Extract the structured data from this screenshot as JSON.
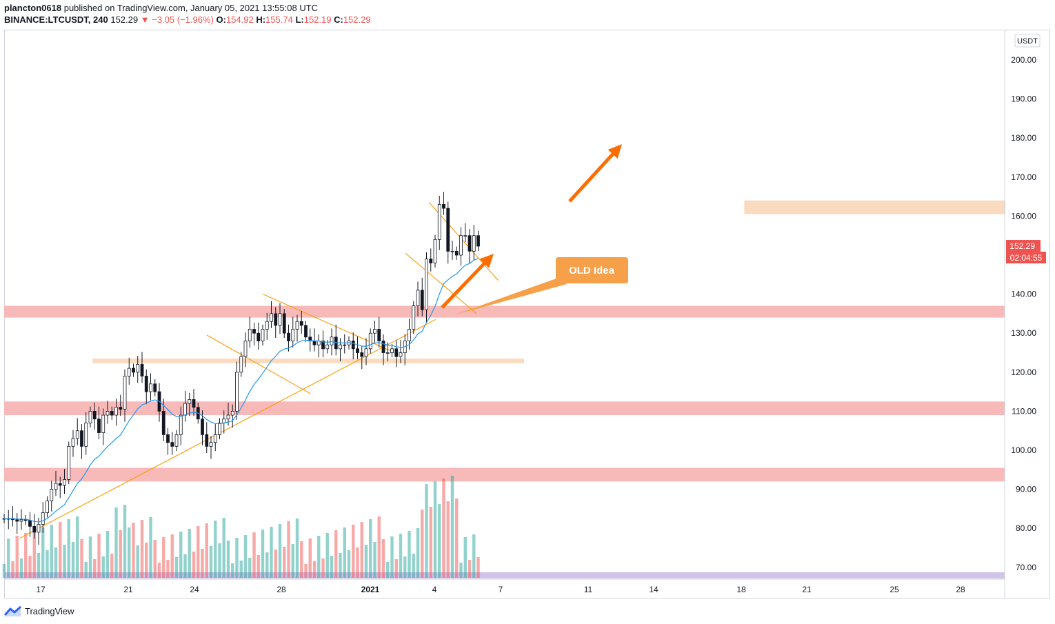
{
  "header": {
    "publisher": "plancton0618",
    "published_text": "published on TradingView.com, January 05, 2021 13:55:08 UTC",
    "symbol": "BINANCE:LTCUSDT, 240",
    "last": "152.29",
    "change": "−3.05 (−1.96%)",
    "o_label": "O:",
    "o": "154.92",
    "h_label": "H:",
    "h": "155.74",
    "l_label": "L:",
    "l": "152.19",
    "c_label": "C:",
    "c": "152.29"
  },
  "footer": {
    "brand": "TradingView",
    "icon": "tradingview-logo-icon"
  },
  "colors": {
    "up": "#26a69a",
    "down": "#ef5350",
    "ma": "#2196f3",
    "trend": "#ff9800",
    "resistance": "#f8b9b9",
    "orange_zone": "#fadbc0",
    "arrow": "#ff6d00"
  },
  "chart_data": {
    "type": "candlestick",
    "symbol": "BINANCE:LTCUSDT",
    "interval": "240",
    "currency_label": "USDT",
    "last_price_label": "152.29",
    "countdown_label": "02:04:55",
    "y_ticks": [
      "200.00",
      "190.00",
      "180.00",
      "170.00",
      "160.00",
      "150.00",
      "140.00",
      "130.00",
      "120.00",
      "110.00",
      "100.00",
      "90.00",
      "80.00",
      "70.00"
    ],
    "ylim": [
      68,
      206
    ],
    "x_ticks": [
      "17",
      "21",
      "24",
      "28",
      "2021",
      "4",
      "7",
      "11",
      "14",
      "18",
      "21",
      "25",
      "28"
    ],
    "x_tick_days": [
      17,
      21,
      24,
      28,
      32,
      35,
      38,
      42,
      45,
      49,
      52,
      56,
      59
    ],
    "xlim": [
      15.4,
      62.8
    ],
    "ohlc_close": [
      82.5,
      82.5,
      82.2,
      81.8,
      82.2,
      82.0,
      80.5,
      79.0,
      81.0,
      84.0,
      87.0,
      90.0,
      91.5,
      91.0,
      92.5,
      101.0,
      103.0,
      105.0,
      101.0,
      107.0,
      110.0,
      108.0,
      104.5,
      109.0,
      110.0,
      109.0,
      111.0,
      110.5,
      119.0,
      121.0,
      120.0,
      122.0,
      119.0,
      115.0,
      117.0,
      115.0,
      110.0,
      104.0,
      102.0,
      101.0,
      104.0,
      109.0,
      112.0,
      113.0,
      111.0,
      108.0,
      104.0,
      101.0,
      102.0,
      104.0,
      107.0,
      108.0,
      109.0,
      110.0,
      120.0,
      124.0,
      128.0,
      131.0,
      130.0,
      128.0,
      131.0,
      133.0,
      135.0,
      132.0,
      135.0,
      130.0,
      128.0,
      131.0,
      133.0,
      132.0,
      129.0,
      128.0,
      127.0,
      128.0,
      126.0,
      127.0,
      129.0,
      126.0,
      127.0,
      127.0,
      128.0,
      126.0,
      125.0,
      124.0,
      126.0,
      130.0,
      131.0,
      128.0,
      125.0,
      125.0,
      126.0,
      124.0,
      125.0,
      128.0,
      131.0,
      137.0,
      141.0,
      136.0,
      149.0,
      148.0,
      154.0,
      163.0,
      162.0,
      151.0,
      151.0,
      150.0,
      155.0,
      155.0,
      151.0,
      155.0,
      152.29
    ],
    "annotations": [
      "OLD Idea"
    ],
    "grid": false
  }
}
